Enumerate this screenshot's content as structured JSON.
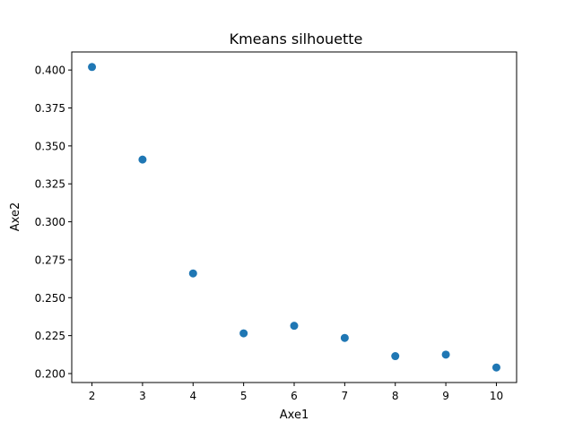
{
  "chart_data": {
    "type": "scatter",
    "title": "Kmeans silhouette",
    "xlabel": "Axe1",
    "ylabel": "Axe2",
    "x": [
      2,
      3,
      4,
      5,
      6,
      7,
      8,
      9,
      10
    ],
    "y": [
      0.402,
      0.341,
      0.266,
      0.2265,
      0.2315,
      0.2235,
      0.2115,
      0.2125,
      0.204
    ],
    "xticks": [
      2,
      3,
      4,
      5,
      6,
      7,
      8,
      9,
      10
    ],
    "xtick_labels": [
      "2",
      "3",
      "4",
      "5",
      "6",
      "7",
      "8",
      "9",
      "10"
    ],
    "yticks": [
      0.2,
      0.225,
      0.25,
      0.275,
      0.3,
      0.325,
      0.35,
      0.375,
      0.4
    ],
    "ytick_labels": [
      "0.200",
      "0.225",
      "0.250",
      "0.275",
      "0.300",
      "0.325",
      "0.350",
      "0.375",
      "0.400"
    ],
    "xlim": [
      1.6,
      10.4
    ],
    "ylim": [
      0.1941,
      0.4119
    ],
    "grid": false,
    "marker_color": "#1f77b4"
  }
}
